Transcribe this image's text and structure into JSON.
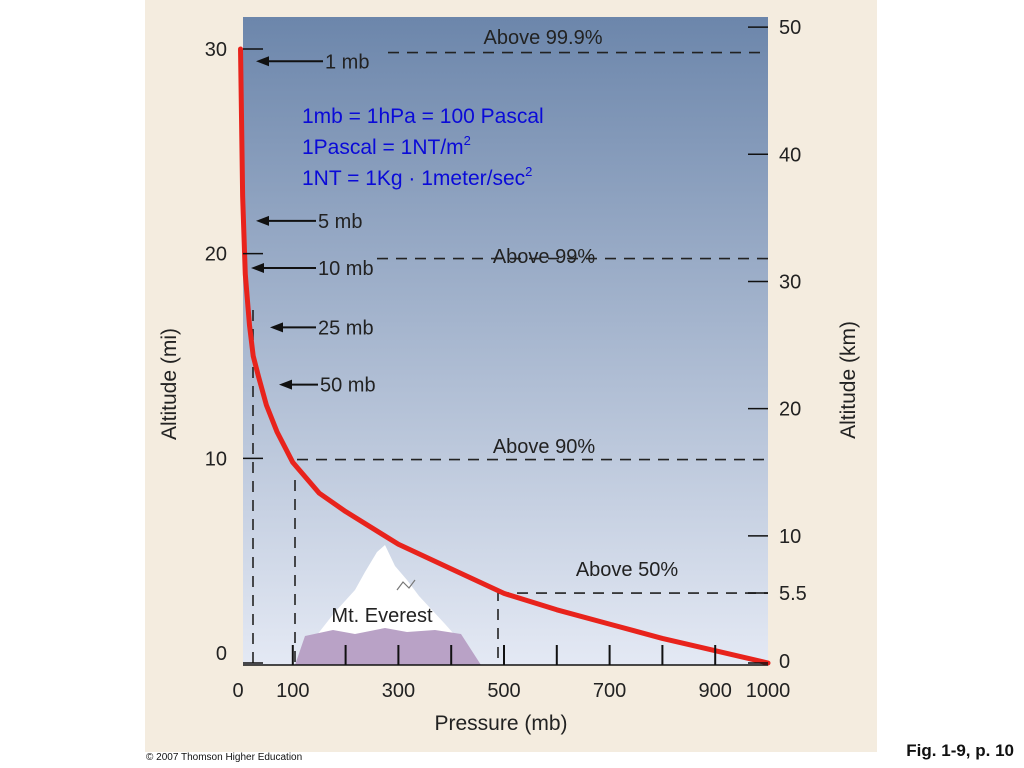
{
  "chart_data": {
    "type": "line",
    "xlabel": "Pressure (mb)",
    "ylabel": "Altitude (mi)",
    "y2label": "Altitude (km)",
    "xlim": [
      0,
      1000
    ],
    "ylim": [
      0,
      30
    ],
    "y2lim": [
      0,
      48.3
    ],
    "x_ticks": [
      0,
      100,
      300,
      500,
      700,
      900,
      1000
    ],
    "y_ticks": [
      0,
      10,
      20,
      30
    ],
    "y2_ticks": [
      "0",
      "5.5",
      "10",
      "20",
      "30",
      "40",
      "50"
    ],
    "series": [
      {
        "color": "#e8231c",
        "x": [
          1013,
          900,
          800,
          700,
          600,
          500,
          400,
          300,
          200,
          150,
          100,
          70,
          50,
          35,
          25,
          18,
          10,
          5,
          1
        ],
        "y": [
          0,
          0.6,
          1.2,
          1.9,
          2.6,
          3.4,
          4.6,
          5.8,
          7.4,
          8.3,
          9.8,
          11.3,
          12.6,
          14.0,
          15.0,
          16.5,
          19.0,
          22.8,
          30.0
        ]
      }
    ],
    "pressure_annotations": [
      {
        "label": "1 mb",
        "altitude_mi": 29.4
      },
      {
        "label": "5 mb",
        "altitude_mi": 21.6
      },
      {
        "label": "10 mb",
        "altitude_mi": 19.3
      },
      {
        "label": "25 mb",
        "altitude_mi": 16.4
      },
      {
        "label": "50 mb",
        "altitude_mi": 13.6
      }
    ],
    "mass_levels": [
      {
        "label": "Above 99.9%",
        "altitude_km": 48
      },
      {
        "label": "Above 99%",
        "altitude_km": 31.8
      },
      {
        "label": "Above 90%",
        "altitude_km": 16
      },
      {
        "label": "Above 50%",
        "altitude_km": 5.5
      }
    ],
    "formulas": [
      {
        "parts": [
          {
            "t": "1mb = 1hPa = 100 Pascal"
          }
        ]
      },
      {
        "parts": [
          {
            "t": "1Pascal = 1NT/m"
          },
          {
            "t": "2",
            "sup": true
          }
        ]
      },
      {
        "parts": [
          {
            "t": "1NT = 1Kg  · 1meter/sec"
          },
          {
            "t": "2",
            "sup": true
          }
        ]
      }
    ],
    "mountain_label": "Mt. Everest",
    "colors": {
      "curve": "#e8231c",
      "sky_top": "#6c86ab",
      "sky_bottom": "#e4e9f4",
      "mountain_base": "#b9a2c6",
      "formula_text": "#0a0ad8",
      "frame": "#f4ecdf"
    }
  },
  "footer": {
    "copyright": "© 2007 Thomson Higher Education",
    "fig_label": "Fig. 1-9, p. 10"
  }
}
